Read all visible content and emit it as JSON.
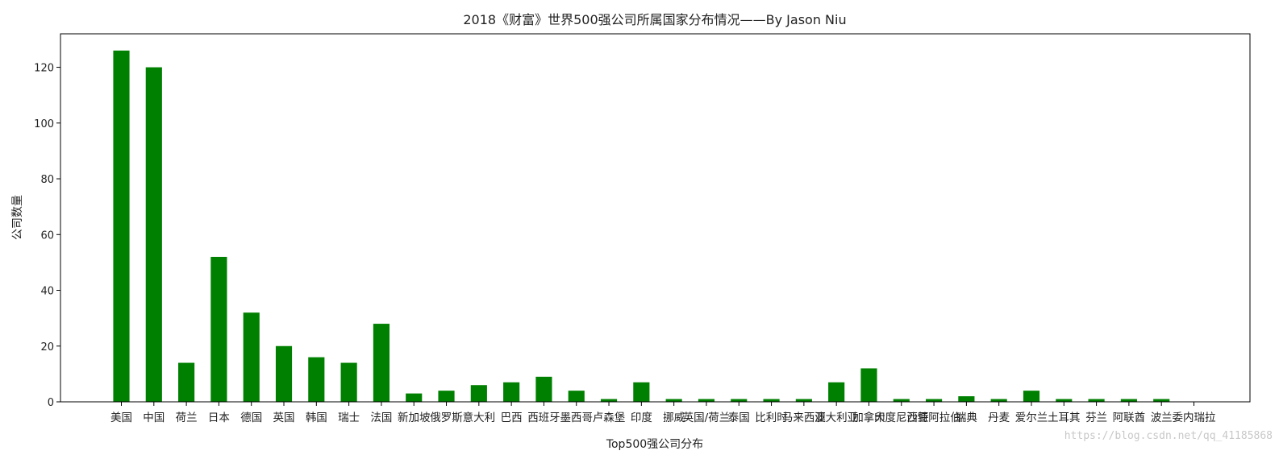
{
  "chart_data": {
    "type": "bar",
    "title": "2018《财富》世界500强公司所属国家分布情况——By Jason Niu",
    "xlabel": "Top500强公司分布",
    "ylabel": "公司数量",
    "ylim": [
      0,
      132
    ],
    "yticks": [
      0,
      20,
      40,
      60,
      80,
      100,
      120
    ],
    "grid": false,
    "legend": "none",
    "bar_color": "#008000",
    "categories": [
      "美国",
      "中国",
      "荷兰",
      "日本",
      "德国",
      "英国",
      "韩国",
      "瑞士",
      "法国",
      "新加坡",
      "俄罗斯",
      "意大利",
      "巴西",
      "西班牙",
      "墨西哥",
      "卢森堡",
      "印度",
      "挪威",
      "英国/荷兰",
      "泰国",
      "比利时",
      "马来西亚",
      "澳大利亚",
      "加拿大",
      "印度尼西亚",
      "沙特阿拉伯",
      "瑞典",
      "丹麦",
      "爱尔兰",
      "土耳其",
      "芬兰",
      "阿联酋",
      "波兰",
      "委内瑞拉"
    ],
    "values": [
      126,
      120,
      14,
      52,
      32,
      20,
      16,
      14,
      28,
      3,
      4,
      6,
      7,
      9,
      4,
      1,
      7,
      1,
      1,
      1,
      1,
      1,
      7,
      12,
      1,
      1,
      2,
      1,
      4,
      1,
      1,
      1,
      1,
      0
    ]
  },
  "watermark": "https://blog.csdn.net/qq_41185868"
}
